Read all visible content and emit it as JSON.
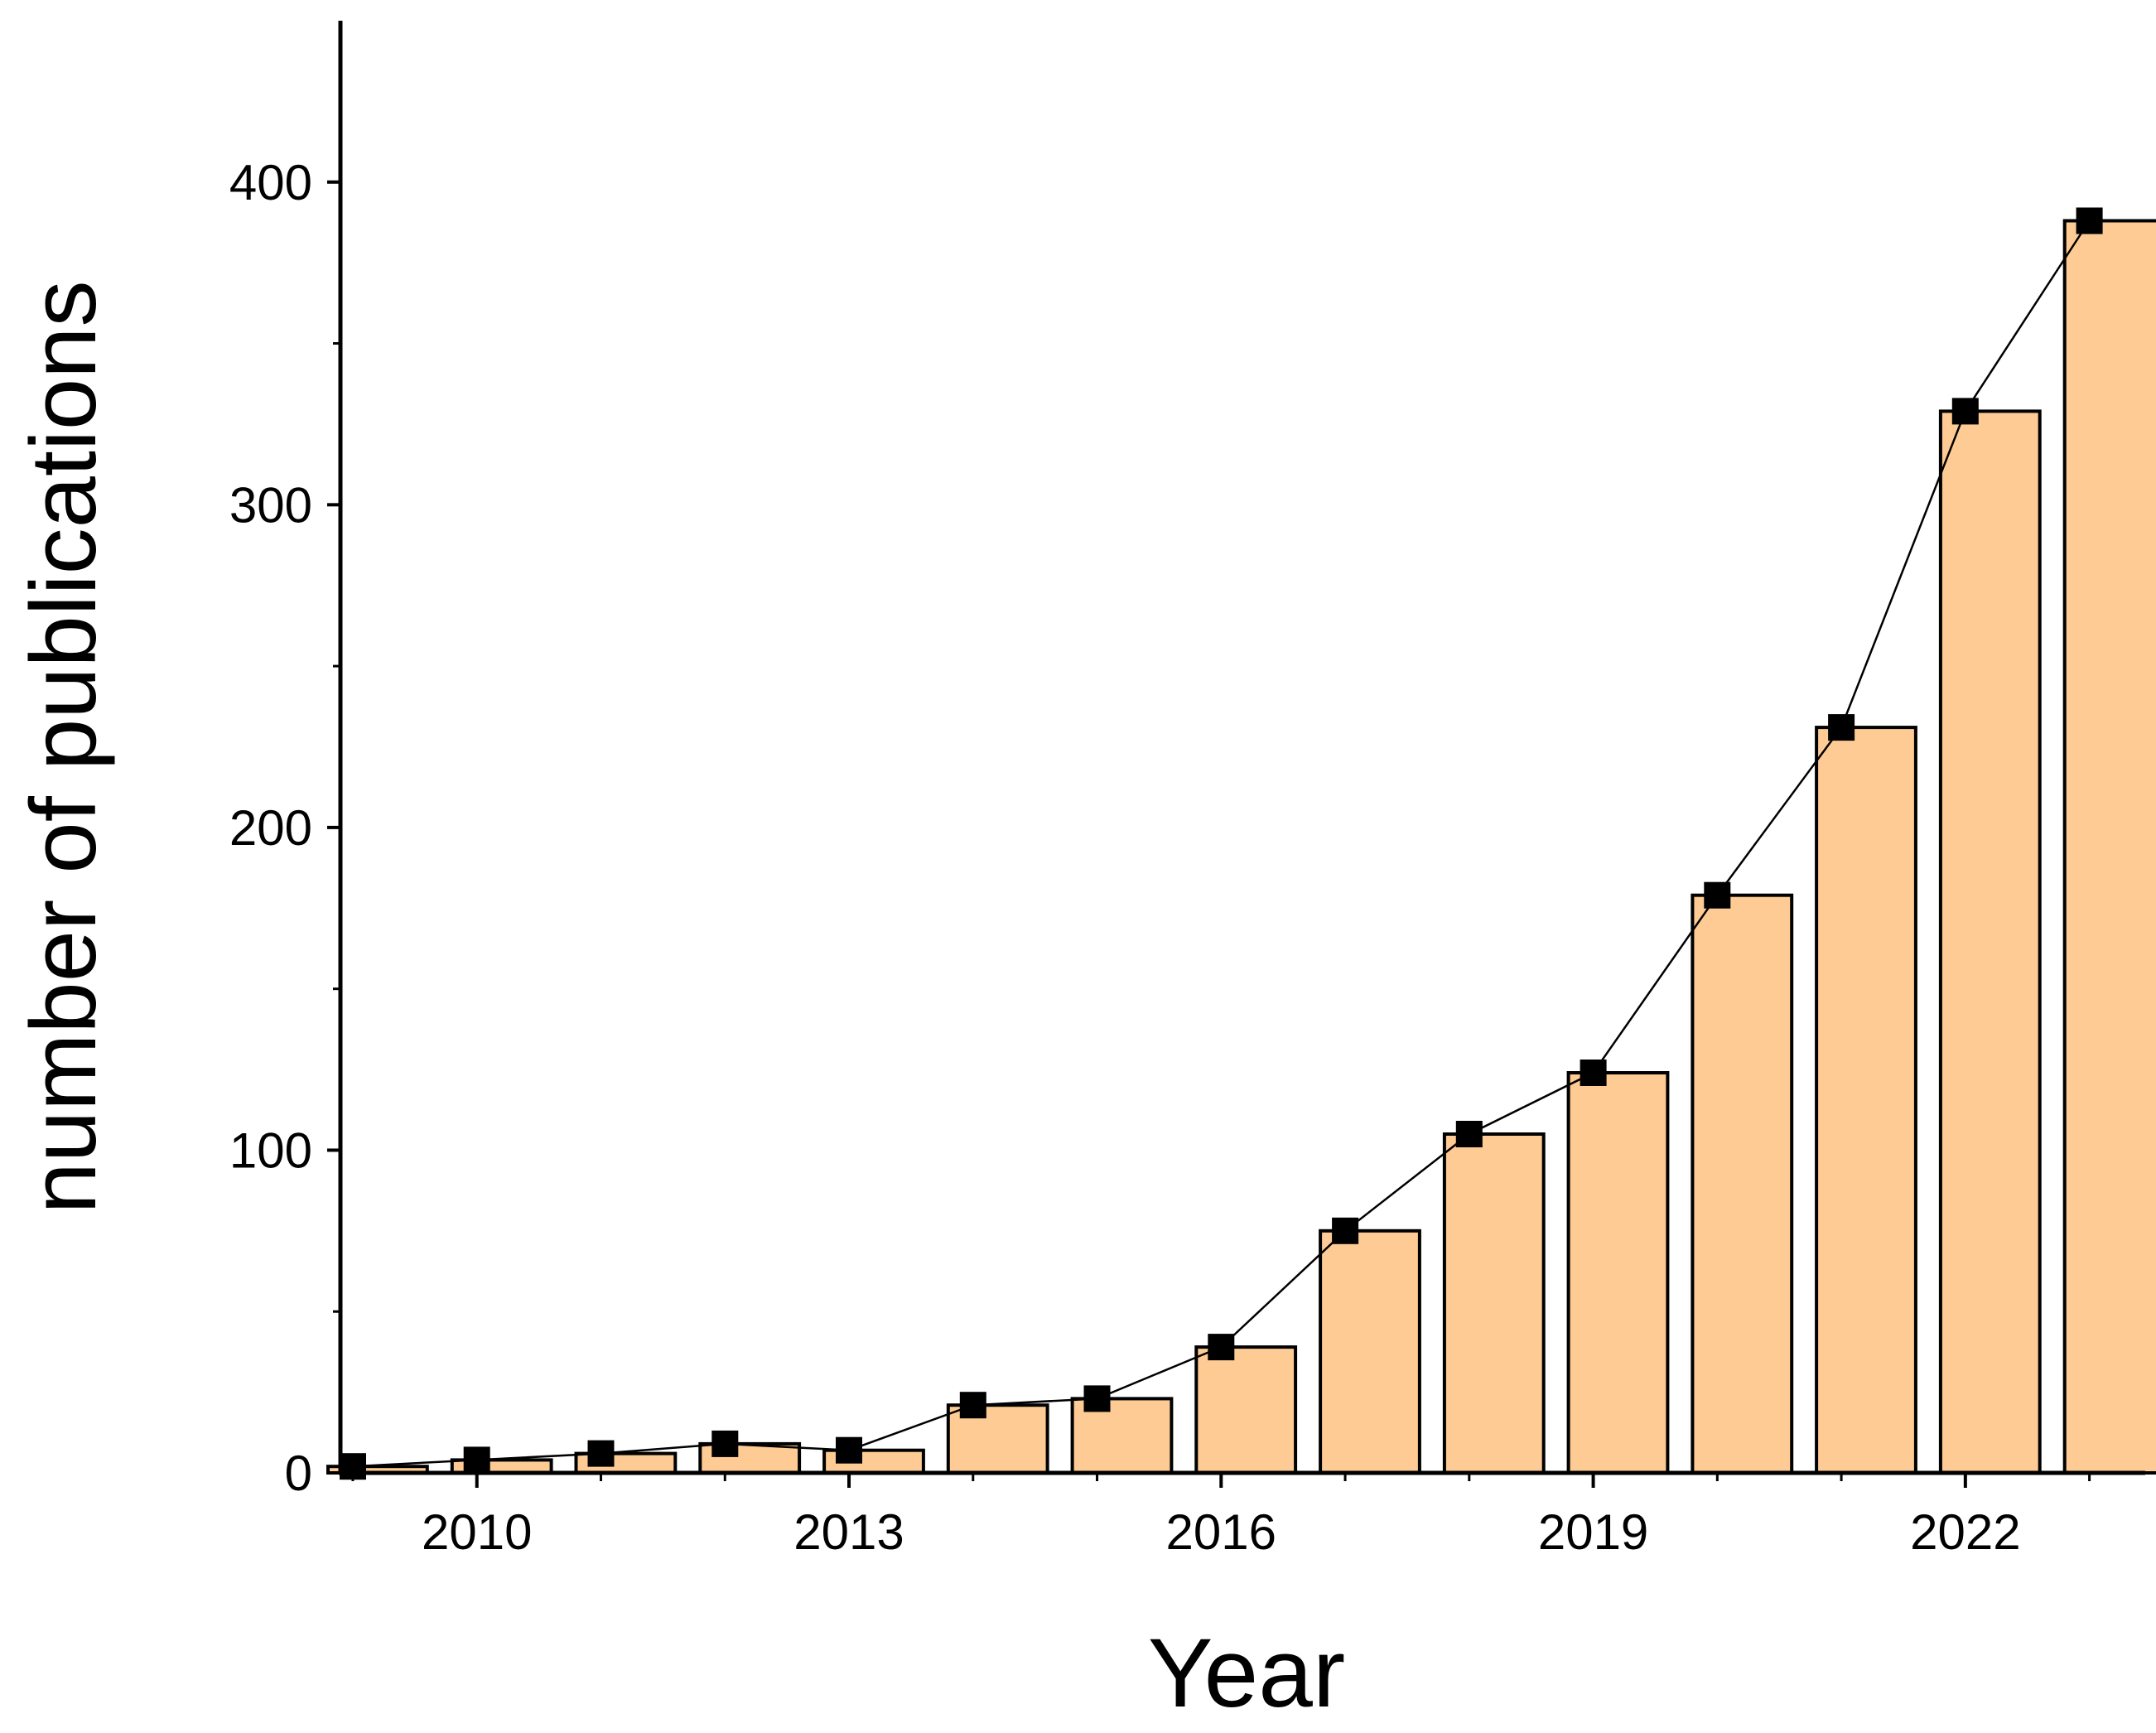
{
  "chart_data": {
    "type": "bar",
    "title": "",
    "xlabel": "Year",
    "ylabel": "number of publications",
    "x": [
      2009,
      2010,
      2011,
      2012,
      2013,
      2014,
      2015,
      2016,
      2017,
      2018,
      2019,
      2020,
      2021,
      2022,
      2023
    ],
    "values": [
      2,
      4,
      6,
      9,
      7,
      21,
      23,
      39,
      75,
      105,
      124,
      179,
      231,
      329,
      388
    ],
    "xlim": [
      2008.9,
      2023.45
    ],
    "ylim": [
      0,
      450
    ],
    "xticks": [
      2010,
      2013,
      2016,
      2019,
      2022
    ],
    "xtick_labels": [
      "2010",
      "2013",
      "2016",
      "2019",
      "2022"
    ],
    "yticks": [
      0,
      100,
      200,
      300,
      400
    ],
    "ytick_labels": [
      "0",
      "100",
      "200",
      "300",
      "400"
    ],
    "overlay": "line with square markers",
    "grid": false,
    "legend": "none",
    "colors": {
      "bar_fill": "#FECB94",
      "bar_edge": "#000000",
      "line": "#000000",
      "marker": "#000000"
    }
  }
}
